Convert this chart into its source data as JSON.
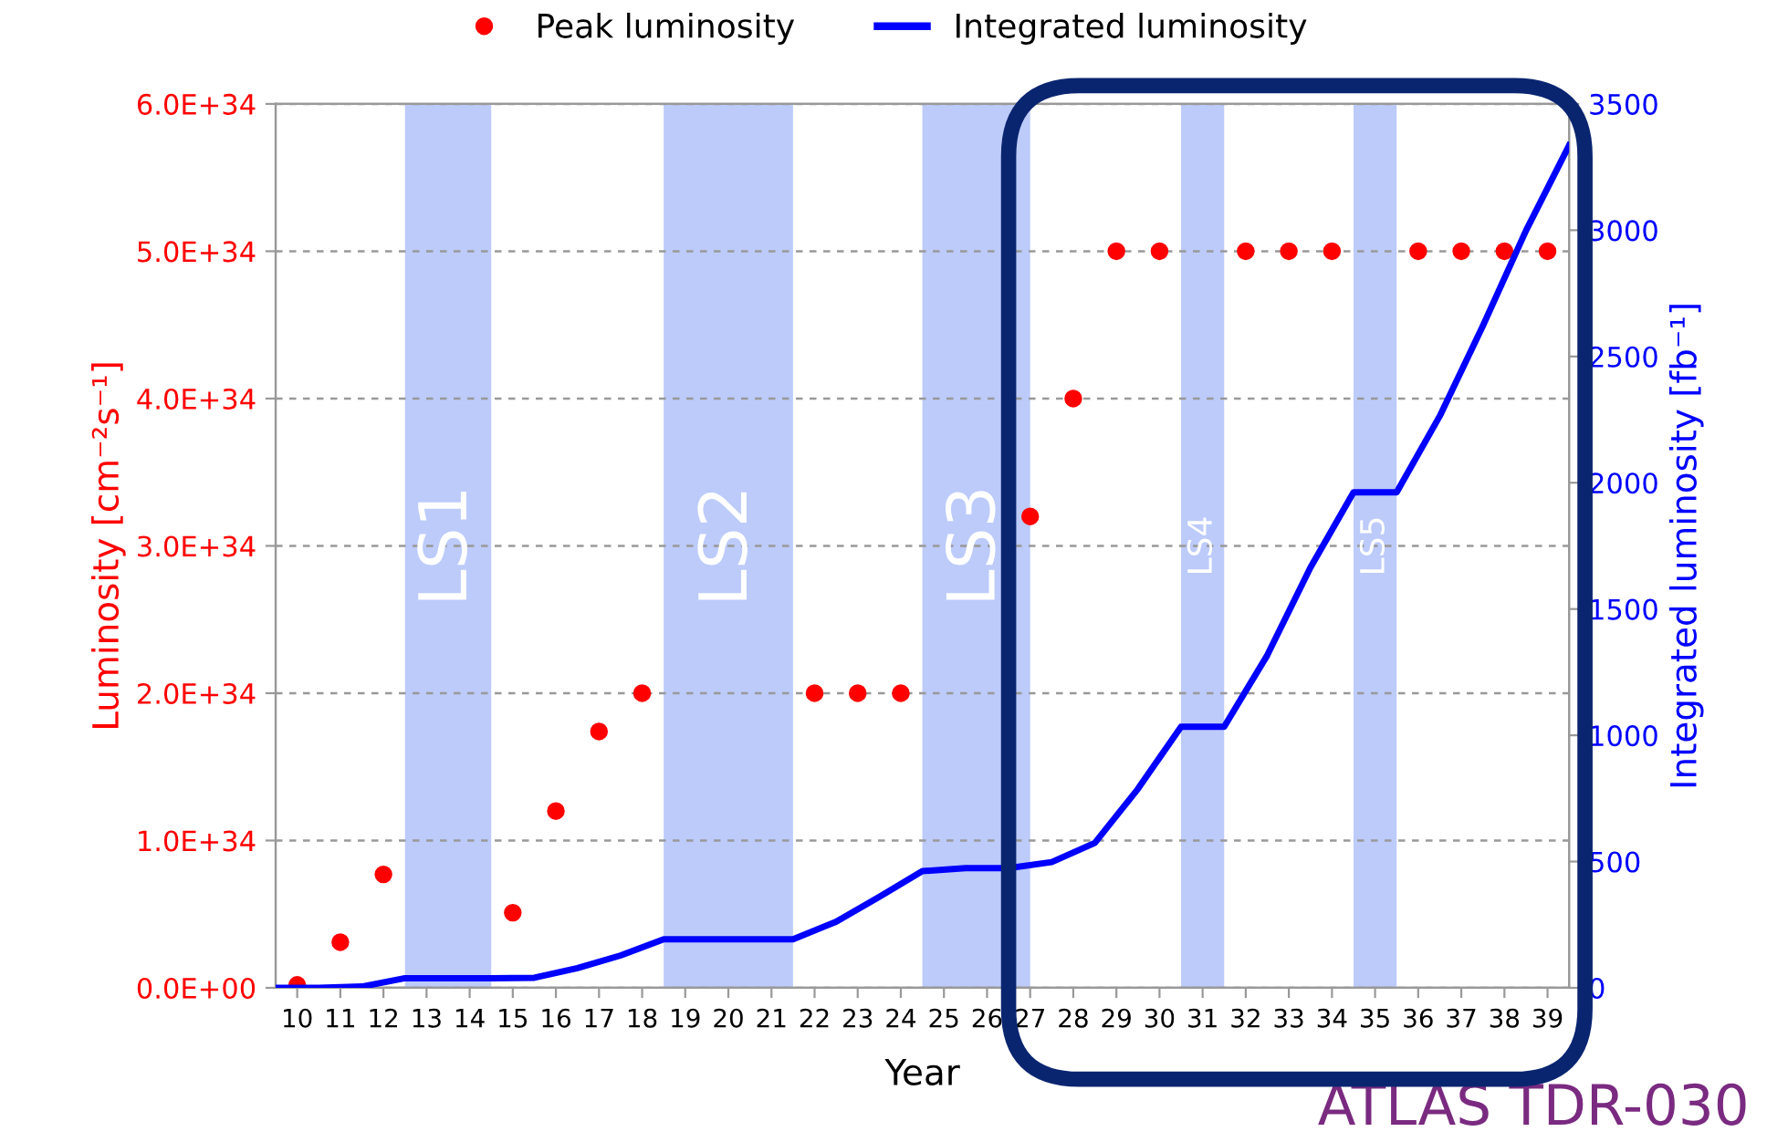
{
  "chart_data": {
    "type": "scatter",
    "xlabel": "Year",
    "ylabel": "Luminosity [cm⁻²s⁻¹]",
    "y2label": "Integrated luminosity [fb⁻¹]",
    "series": [
      {
        "name": "Peak luminosity",
        "color": "#ff0000",
        "marker": "circle",
        "x": [
          10,
          11,
          12,
          15,
          16,
          17,
          18,
          22,
          23,
          24,
          27,
          28,
          29,
          30,
          32,
          33,
          34,
          36,
          37,
          38,
          39
        ],
        "values": [
          2e+32,
          3.1e+33,
          7.7e+33,
          5.1e+33,
          1.2e+34,
          1.74e+34,
          2e+34,
          2e+34,
          2e+34,
          2e+34,
          3.2e+34,
          4e+34,
          5e+34,
          5e+34,
          5e+34,
          5e+34,
          5e+34,
          5e+34,
          5e+34,
          5e+34,
          5e+34
        ]
      },
      {
        "name": "Integrated luminosity",
        "type": "line",
        "axis": "y2",
        "color": "#0000ff",
        "marker": "none",
        "line_style": "solid",
        "x": [
          9.5,
          10.5,
          11.5,
          12.5,
          14.5,
          15.5,
          16.5,
          17.5,
          18.5,
          21.5,
          22.5,
          23.5,
          24.5,
          25.5,
          26.5,
          27.5,
          28.5,
          29.5,
          30.5,
          31.5,
          32.5,
          33.5,
          34.5,
          35.5,
          36.5,
          37.5,
          38.5,
          39.5
        ],
        "values": [
          0,
          0,
          5,
          38,
          38,
          40,
          78,
          128,
          192,
          192,
          262,
          360,
          462,
          474,
          474,
          498,
          574,
          788,
          1034,
          1034,
          1317,
          1664,
          1962,
          1962,
          2264,
          2621,
          2998,
          3336
        ]
      }
    ],
    "xlim": [
      9.5,
      39.5
    ],
    "xticks": [
      10,
      11,
      12,
      13,
      14,
      15,
      16,
      17,
      18,
      19,
      20,
      21,
      22,
      23,
      24,
      25,
      26,
      27,
      28,
      29,
      30,
      31,
      32,
      33,
      34,
      35,
      36,
      37,
      38,
      39
    ],
    "ylim": [
      0,
      6e+34
    ],
    "yticks": [
      {
        "value": 0,
        "label": "0.0E+00"
      },
      {
        "value": 1e+34,
        "label": "1.0E+34"
      },
      {
        "value": 2e+34,
        "label": "2.0E+34"
      },
      {
        "value": 3e+34,
        "label": "3.0E+34"
      },
      {
        "value": 4e+34,
        "label": "4.0E+34"
      },
      {
        "value": 5e+34,
        "label": "5.0E+34"
      },
      {
        "value": 6e+34,
        "label": "6.0E+34"
      }
    ],
    "y2lim": [
      0,
      3500
    ],
    "y2ticks": [
      0,
      500,
      1000,
      1500,
      2000,
      2500,
      3000,
      3500
    ],
    "bands": [
      {
        "axis": "x",
        "from": 12.5,
        "to": 14.5,
        "label": "LS1",
        "color": "#bccbfa"
      },
      {
        "axis": "x",
        "from": 18.5,
        "to": 21.5,
        "label": "LS2",
        "color": "#bccbfa"
      },
      {
        "axis": "x",
        "from": 24.5,
        "to": 27.0,
        "label": "LS3",
        "color": "#bccbfa"
      },
      {
        "axis": "x",
        "from": 30.5,
        "to": 31.5,
        "label": "LS4",
        "color": "#bccbfa"
      },
      {
        "axis": "x",
        "from": 34.5,
        "to": 35.5,
        "label": "LS5",
        "color": "#bccbfa"
      }
    ],
    "annotations": [
      "ATLAS TDR-030"
    ],
    "grid": "y",
    "legend": "top"
  }
}
